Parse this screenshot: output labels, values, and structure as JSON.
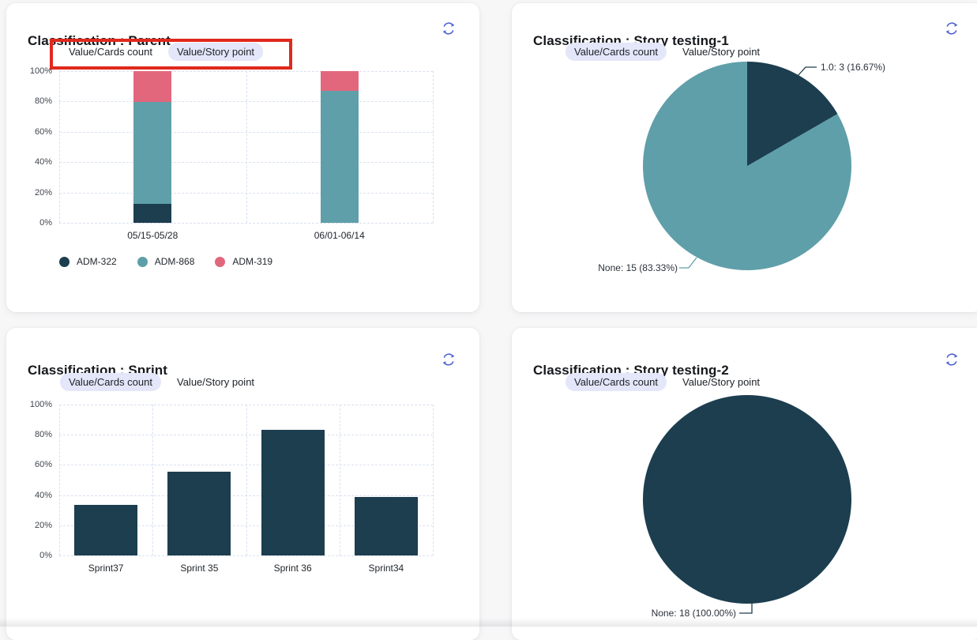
{
  "palette": {
    "navy": "#1c3e4f",
    "teal": "#5f9fa9",
    "rose": "#e2677c",
    "refresh_blue": "#4f63d2",
    "tab_pill_bg": "#e4e6f9",
    "annotation_red": "#e0291c",
    "page_bg": "#f7f7f8"
  },
  "icons": {
    "refresh": "refresh-circular-arrows-icon"
  },
  "cards": [
    {
      "title": "Classification : Parent",
      "tabs": [
        {
          "label": "Value/Cards count",
          "active": false
        },
        {
          "label": "Value/Story point",
          "active": true
        }
      ],
      "annotation": "red-highlight-box-around-tabs"
    },
    {
      "title": "Classification : Story testing-1",
      "tabs": [
        {
          "label": "Value/Cards count",
          "active": true
        },
        {
          "label": "Value/Story point",
          "active": false
        }
      ]
    },
    {
      "title": "Classification : Sprint",
      "tabs": [
        {
          "label": "Value/Cards count",
          "active": true
        },
        {
          "label": "Value/Story point",
          "active": false
        }
      ]
    },
    {
      "title": "Classification : Story testing-2",
      "tabs": [
        {
          "label": "Value/Cards count",
          "active": true
        },
        {
          "label": "Value/Story point",
          "active": false
        }
      ]
    }
  ],
  "chart_data": [
    {
      "type": "bar",
      "stacked": true,
      "title": "Classification : Parent",
      "categories": [
        "05/15-05/28",
        "06/01-06/14"
      ],
      "series": [
        {
          "name": "ADM-322",
          "color": "#1c3e4f",
          "values": [
            12.5,
            0
          ]
        },
        {
          "name": "ADM-868",
          "color": "#5f9fa9",
          "values": [
            67,
            87
          ]
        },
        {
          "name": "ADM-319",
          "color": "#e2677c",
          "values": [
            20.5,
            13
          ]
        }
      ],
      "y_ticks": [
        "0%",
        "20%",
        "40%",
        "60%",
        "80%",
        "100%"
      ],
      "ylim": [
        0,
        100
      ],
      "grid": "dashed",
      "legend_position": "bottom"
    },
    {
      "type": "pie",
      "title": "Classification : Story testing-1",
      "slices": [
        {
          "label": "1.0: 3 (16.67%)",
          "value": 16.67,
          "color": "#1c3e4f"
        },
        {
          "label": "None: 15 (83.33%)",
          "value": 83.33,
          "color": "#5f9fa9"
        }
      ]
    },
    {
      "type": "bar",
      "stacked": false,
      "title": "Classification : Sprint",
      "categories": [
        "Sprint37",
        "Sprint 35",
        "Sprint 36",
        "Sprint34"
      ],
      "series": [
        {
          "name": "",
          "color": "#1c3e4f",
          "values": [
            33.33,
            55.56,
            83.33,
            38.89
          ]
        }
      ],
      "y_ticks": [
        "0%",
        "20%",
        "40%",
        "60%",
        "80%",
        "100%"
      ],
      "ylim": [
        0,
        100
      ],
      "grid": "dashed"
    },
    {
      "type": "pie",
      "title": "Classification : Story testing-2",
      "slices": [
        {
          "label": "None: 18 (100.00%)",
          "value": 100,
          "color": "#1c3e4f"
        }
      ]
    }
  ]
}
